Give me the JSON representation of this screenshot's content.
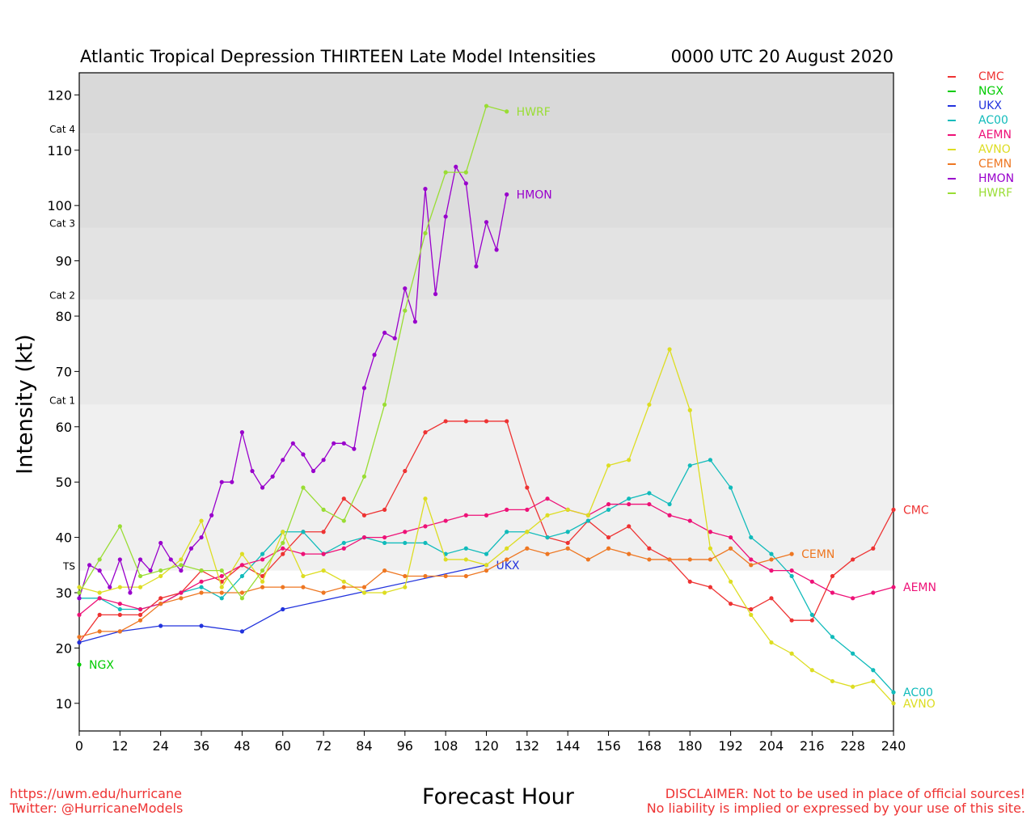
{
  "title_left": "Atlantic Tropical Depression THIRTEEN Late Model Intensities",
  "title_right": "0000 UTC 20 August 2020",
  "footer_left": [
    "https://uwm.edu/hurricane",
    "Twitter: @HurricaneModels"
  ],
  "footer_right": [
    "DISCLAIMER: Not to be used in place of official sources!",
    "No liability is implied or expressed by your use of this site."
  ],
  "chart_data": {
    "type": "line",
    "xlabel": "Forecast Hour",
    "ylabel": "Intensity (kt)",
    "xlim": [
      0,
      240
    ],
    "ylim": [
      5,
      124
    ],
    "xticks": [
      0,
      12,
      24,
      36,
      48,
      60,
      72,
      84,
      96,
      108,
      120,
      132,
      144,
      156,
      168,
      180,
      192,
      204,
      216,
      228,
      240
    ],
    "yticks": [
      10,
      20,
      30,
      40,
      50,
      60,
      70,
      80,
      90,
      100,
      110,
      120
    ],
    "categories": [
      {
        "label": "TS",
        "threshold": 34,
        "shade": "#f0f0f0"
      },
      {
        "label": "Cat 1",
        "threshold": 64,
        "shade": "#e9e9e9"
      },
      {
        "label": "Cat 2",
        "threshold": 83,
        "shade": "#e3e3e3"
      },
      {
        "label": "Cat 3",
        "threshold": 96,
        "shade": "#dddddd"
      },
      {
        "label": "Cat 4",
        "threshold": 113,
        "shade": "#d9d9d9"
      }
    ],
    "legend_position": "right, outside plot",
    "series": [
      {
        "name": "CMC",
        "color": "#ee3333",
        "label_on_chart": true,
        "x": [
          0,
          6,
          12,
          18,
          24,
          30,
          36,
          42,
          48,
          54,
          60,
          66,
          72,
          78,
          84,
          90,
          96,
          102,
          108,
          114,
          120,
          126,
          132,
          138,
          144,
          150,
          156,
          162,
          168,
          174,
          180,
          186,
          192,
          198,
          204,
          210,
          216,
          222,
          228,
          234,
          240
        ],
        "y": [
          21,
          26,
          26,
          26,
          29,
          30,
          34,
          32,
          35,
          33,
          37,
          41,
          41,
          47,
          44,
          45,
          52,
          59,
          61,
          61,
          61,
          61,
          49,
          40,
          39,
          43,
          40,
          42,
          38,
          36,
          32,
          31,
          28,
          27,
          29,
          25,
          25,
          33,
          36,
          38,
          45
        ]
      },
      {
        "name": "NGX",
        "color": "#00cc00",
        "label_on_chart": true,
        "x": [
          0
        ],
        "y": [
          17
        ]
      },
      {
        "name": "UKX",
        "color": "#2233dd",
        "label_on_chart": true,
        "x": [
          0,
          12,
          24,
          36,
          48,
          60,
          120
        ],
        "y": [
          21,
          23,
          24,
          24,
          23,
          27,
          35
        ]
      },
      {
        "name": "AC00",
        "color": "#11bbbb",
        "label_on_chart": true,
        "x": [
          0,
          6,
          12,
          18,
          24,
          30,
          36,
          42,
          48,
          54,
          60,
          66,
          72,
          78,
          84,
          90,
          96,
          102,
          108,
          114,
          120,
          126,
          132,
          138,
          144,
          150,
          156,
          162,
          168,
          174,
          180,
          186,
          192,
          198,
          204,
          210,
          216,
          222,
          228,
          234,
          240
        ],
        "y": [
          29,
          29,
          27,
          27,
          28,
          30,
          31,
          29,
          33,
          37,
          41,
          41,
          37,
          39,
          40,
          39,
          39,
          39,
          37,
          38,
          37,
          41,
          41,
          40,
          41,
          43,
          45,
          47,
          48,
          46,
          53,
          54,
          49,
          40,
          37,
          33,
          26,
          22,
          19,
          16,
          12
        ]
      },
      {
        "name": "AEMN",
        "color": "#ee1177",
        "label_on_chart": true,
        "x": [
          0,
          6,
          12,
          18,
          24,
          30,
          36,
          42,
          48,
          54,
          60,
          66,
          72,
          78,
          84,
          90,
          96,
          102,
          108,
          114,
          120,
          126,
          132,
          138,
          144,
          150,
          156,
          162,
          168,
          174,
          180,
          186,
          192,
          198,
          204,
          210,
          216,
          222,
          228,
          234,
          240
        ],
        "y": [
          26,
          29,
          28,
          27,
          28,
          30,
          32,
          33,
          35,
          36,
          38,
          37,
          37,
          38,
          40,
          40,
          41,
          42,
          43,
          44,
          44,
          45,
          45,
          47,
          45,
          44,
          46,
          46,
          46,
          44,
          43,
          41,
          40,
          36,
          34,
          34,
          32,
          30,
          29,
          30,
          31
        ]
      },
      {
        "name": "AVNO",
        "color": "#dddd22",
        "label_on_chart": true,
        "x": [
          0,
          6,
          12,
          18,
          24,
          30,
          36,
          42,
          48,
          54,
          60,
          66,
          72,
          78,
          84,
          90,
          96,
          102,
          108,
          114,
          120,
          126,
          132,
          138,
          144,
          150,
          156,
          162,
          168,
          174,
          180,
          186,
          192,
          198,
          204,
          210,
          216,
          222,
          228,
          234,
          240
        ],
        "y": [
          31,
          30,
          31,
          31,
          33,
          36,
          43,
          31,
          37,
          32,
          41,
          33,
          34,
          32,
          30,
          30,
          31,
          47,
          36,
          36,
          35,
          38,
          41,
          44,
          45,
          44,
          53,
          54,
          64,
          74,
          63,
          38,
          32,
          26,
          21,
          19,
          16,
          14,
          13,
          14,
          10
        ]
      },
      {
        "name": "CEMN",
        "color": "#ee7722",
        "label_on_chart": true,
        "x": [
          0,
          6,
          12,
          18,
          24,
          30,
          36,
          42,
          48,
          54,
          60,
          66,
          72,
          78,
          84,
          90,
          96,
          102,
          108,
          114,
          120,
          126,
          132,
          138,
          144,
          150,
          156,
          162,
          168,
          174,
          180,
          186,
          192,
          198,
          204,
          210
        ],
        "y": [
          22,
          23,
          23,
          25,
          28,
          29,
          30,
          30,
          30,
          31,
          31,
          31,
          30,
          31,
          31,
          34,
          33,
          33,
          33,
          33,
          34,
          36,
          38,
          37,
          38,
          36,
          38,
          37,
          36,
          36,
          36,
          36,
          38,
          35,
          36,
          37
        ]
      },
      {
        "name": "HMON",
        "color": "#9900cc",
        "label_on_chart": true,
        "x": [
          0,
          3,
          6,
          9,
          12,
          15,
          18,
          21,
          24,
          27,
          30,
          33,
          36,
          39,
          42,
          45,
          48,
          51,
          54,
          57,
          60,
          63,
          66,
          69,
          72,
          75,
          78,
          81,
          84,
          87,
          90,
          93,
          96,
          99,
          102,
          105,
          108,
          111,
          114,
          117,
          120,
          123,
          126
        ],
        "y": [
          29,
          35,
          34,
          31,
          36,
          30,
          36,
          34,
          39,
          36,
          34,
          38,
          40,
          44,
          50,
          50,
          59,
          52,
          49,
          51,
          54,
          57,
          55,
          52,
          54,
          57,
          57,
          56,
          67,
          73,
          77,
          76,
          85,
          79,
          103,
          84,
          98,
          107,
          104,
          89,
          97,
          92,
          102
        ]
      },
      {
        "name": "HWRF",
        "color": "#99dd33",
        "label_on_chart": true,
        "x": [
          0,
          6,
          12,
          18,
          24,
          30,
          36,
          42,
          48,
          54,
          60,
          66,
          72,
          78,
          84,
          90,
          96,
          102,
          108,
          114,
          120,
          126
        ],
        "y": [
          30,
          36,
          42,
          33,
          34,
          35,
          34,
          34,
          29,
          34,
          39,
          49,
          45,
          43,
          51,
          64,
          81,
          95,
          106,
          106,
          118,
          117
        ]
      }
    ]
  }
}
